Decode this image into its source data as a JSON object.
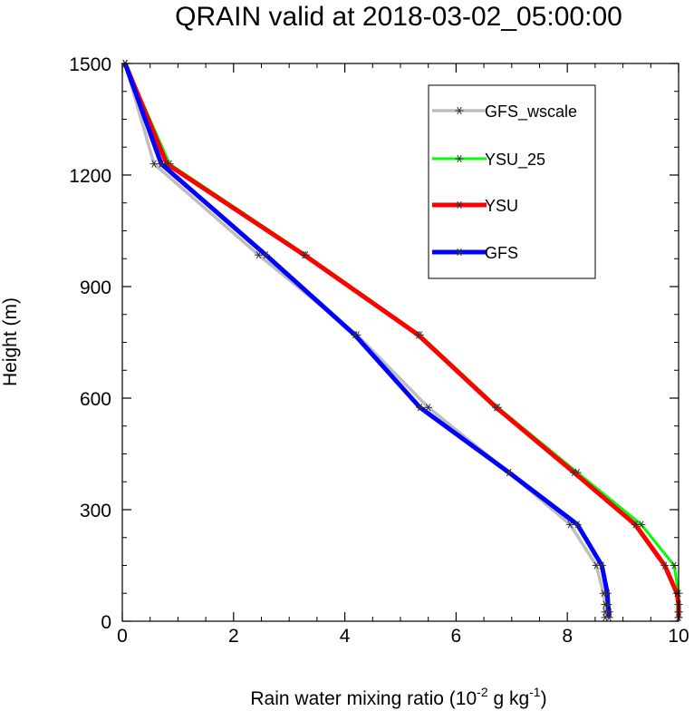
{
  "chart_data": {
    "type": "line",
    "title": "QRAIN valid at 2018-03-02_05:00:00",
    "xlabel_main": "Rain water mixing ratio (10",
    "xlabel_exp1": "-2",
    "xlabel_mid": " g kg",
    "xlabel_exp2": "-1",
    "xlabel_end": ")",
    "ylabel": "Height (m)",
    "xlim": [
      0,
      10
    ],
    "ylim": [
      0,
      1500
    ],
    "xticks": [
      0,
      2,
      4,
      6,
      8,
      10
    ],
    "yticks": [
      0,
      300,
      600,
      900,
      1200,
      1500
    ],
    "heights": [
      10,
      25,
      45,
      75,
      150,
      260,
      400,
      575,
      770,
      985,
      1230,
      1500
    ],
    "legend_position": "top-right",
    "series": [
      {
        "name": "GFS_wscale",
        "color": "#bebebe",
        "width": 3.5,
        "values": [
          8.68,
          8.68,
          8.68,
          8.65,
          8.52,
          8.05,
          6.95,
          5.5,
          4.22,
          2.45,
          0.57,
          0.05
        ]
      },
      {
        "name": "YSU_25",
        "color": "#00ff00",
        "width": 3.0,
        "values": [
          10.0,
          10.0,
          10.0,
          10.0,
          9.92,
          9.33,
          8.18,
          6.75,
          5.35,
          3.3,
          0.85,
          0.05
        ]
      },
      {
        "name": "YSU",
        "color": "#ff0000",
        "width": 5.0,
        "values": [
          10.0,
          10.0,
          10.0,
          9.97,
          9.75,
          9.22,
          8.12,
          6.72,
          5.32,
          3.27,
          0.8,
          0.05
        ]
      },
      {
        "name": "GFS",
        "color": "#0000ff",
        "width": 5.0,
        "values": [
          8.75,
          8.75,
          8.73,
          8.72,
          8.62,
          8.18,
          6.95,
          5.35,
          4.18,
          2.58,
          0.7,
          0.05
        ]
      }
    ]
  }
}
